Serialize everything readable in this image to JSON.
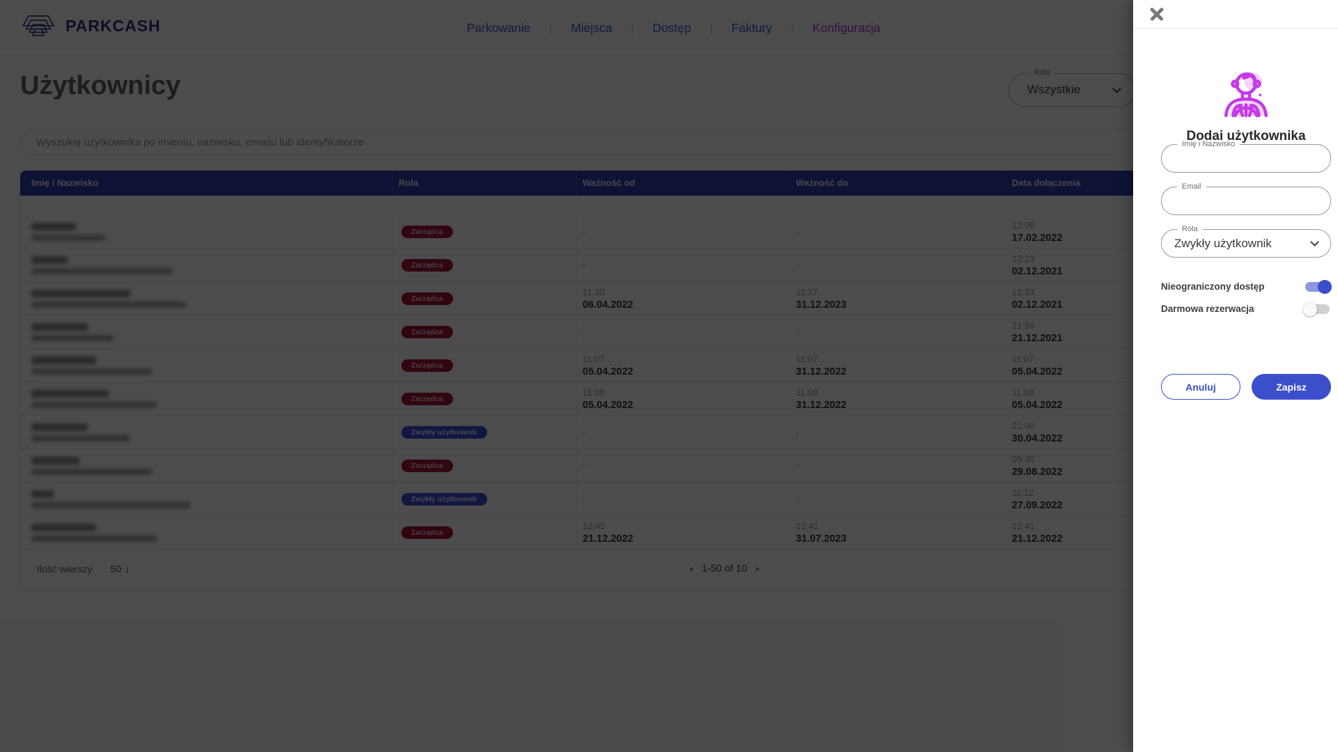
{
  "brand": "PARKCASH",
  "nav": {
    "items": [
      "Parkowanie",
      "Miejsca",
      "Dostęp",
      "Faktury",
      "Konfiguracja"
    ],
    "active_index": 4
  },
  "page_title": "Użytkownicy",
  "role_filter": {
    "label": "Rola",
    "value": "Wszystkie"
  },
  "search": {
    "placeholder": "Wyszukaj użytkownika po imieniu, nazwisku, emailu lub identyfikatorze"
  },
  "table": {
    "columns": [
      "Imię i Nazwisko",
      "Rola",
      "Ważność od",
      "Ważność do",
      "Data dołączenia"
    ],
    "empty_cell": "-",
    "rows": [
      {
        "role": "Zarządca",
        "role_type": "admin",
        "from": null,
        "to": null,
        "joined": {
          "time": "12:09",
          "date": "17.02.2022"
        },
        "blur": [
          64,
          106
        ]
      },
      {
        "role": "Zarządca",
        "role_type": "admin",
        "from": null,
        "to": null,
        "joined": {
          "time": "12:23",
          "date": "02.12.2021"
        },
        "blur": [
          52,
          203
        ]
      },
      {
        "role": "Zarządca",
        "role_type": "admin",
        "from": {
          "time": "11:30",
          "date": "06.04.2022"
        },
        "to": {
          "time": "11:27",
          "date": "31.12.2023"
        },
        "joined": {
          "time": "12:23",
          "date": "02.12.2021"
        },
        "blur": [
          142,
          222
        ]
      },
      {
        "role": "Zarządca",
        "role_type": "admin",
        "from": null,
        "to": null,
        "joined": {
          "time": "21:59",
          "date": "21.12.2021"
        },
        "blur": [
          81,
          118
        ]
      },
      {
        "role": "Zarządca",
        "role_type": "admin",
        "from": {
          "time": "11:07",
          "date": "05.04.2022"
        },
        "to": {
          "time": "11:07",
          "date": "31.12.2022"
        },
        "joined": {
          "time": "11:07",
          "date": "05.04.2022"
        },
        "blur": [
          93,
          173
        ]
      },
      {
        "role": "Zarządca",
        "role_type": "admin",
        "from": {
          "time": "11:08",
          "date": "05.04.2022"
        },
        "to": {
          "time": "11:08",
          "date": "31.12.2022"
        },
        "joined": {
          "time": "11:08",
          "date": "05.04.2022"
        },
        "blur": [
          111,
          180
        ]
      },
      {
        "role": "Zwykły użytkownik",
        "role_type": "user",
        "from": null,
        "to": null,
        "joined": {
          "time": "21:00",
          "date": "30.04.2022"
        },
        "blur": [
          81,
          142
        ]
      },
      {
        "role": "Zarządca",
        "role_type": "admin",
        "from": null,
        "to": null,
        "joined": {
          "time": "09:30",
          "date": "29.08.2022"
        },
        "blur": [
          69,
          173
        ]
      },
      {
        "role": "Zwykły użytkownik",
        "role_type": "user",
        "from": null,
        "to": null,
        "joined": {
          "time": "11:12",
          "date": "27.09.2022"
        },
        "blur": [
          32,
          228
        ]
      },
      {
        "role": "Zarządca",
        "role_type": "admin",
        "from": {
          "time": "12:45",
          "date": "21.12.2022"
        },
        "to": {
          "time": "12:41",
          "date": "31.07.2023"
        },
        "joined": {
          "time": "12:41",
          "date": "21.12.2022"
        },
        "blur": [
          93,
          180
        ]
      }
    ]
  },
  "footer": {
    "rows_label": "Ilość wierszy",
    "rows_value": "50",
    "range": "1-50 of 10",
    "icons": {
      "rows_arrow": "↓",
      "prev": "◄",
      "next": "►"
    }
  },
  "panel": {
    "title": "Dodaj użytkownika",
    "fields": [
      {
        "label": "Imię i Nazwisko",
        "value": ""
      },
      {
        "label": "Email",
        "value": ""
      }
    ],
    "role_field": {
      "label": "Rola",
      "value": "Zwykły użytkownik"
    },
    "toggles": [
      {
        "label": "Nieograniczony dostęp",
        "on": true
      },
      {
        "label": "Darmowa rezerwacja",
        "on": false
      }
    ],
    "buttons": {
      "cancel": "Anuluj",
      "save": "Zapisz"
    }
  },
  "colors": {
    "accent_blue": "#3b4ecb",
    "accent_magenta": "#a93bd2",
    "header_navy": "#2f3db0",
    "badge_admin": "#a61739",
    "badge_user": "#3d4edc",
    "icon_magenta": "#c43ae8"
  }
}
